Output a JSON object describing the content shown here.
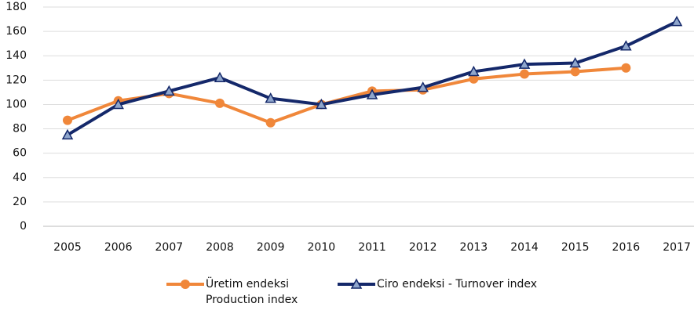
{
  "chart_data": {
    "type": "line",
    "categories": [
      "2005",
      "2006",
      "2007",
      "2008",
      "2009",
      "2010",
      "2011",
      "2012",
      "2013",
      "2014",
      "2015",
      "2016",
      "2017"
    ],
    "series": [
      {
        "name": "Üretim endeksi Production index",
        "color": "#f0873a",
        "marker": "circle",
        "values": [
          87,
          103,
          109,
          101,
          85,
          100,
          111,
          112,
          121,
          125,
          127,
          130,
          null
        ]
      },
      {
        "name": "Ciro endeksi - Turnover index",
        "color": "#14286a",
        "marker": "triangle",
        "values": [
          75,
          100,
          111,
          122,
          105,
          100,
          108,
          114,
          127,
          133,
          134,
          148,
          168
        ]
      }
    ],
    "ylim": [
      0,
      180
    ],
    "yticks": [
      0,
      20,
      40,
      60,
      80,
      100,
      120,
      140,
      160,
      180
    ],
    "grid": true,
    "legend": "bottom"
  }
}
